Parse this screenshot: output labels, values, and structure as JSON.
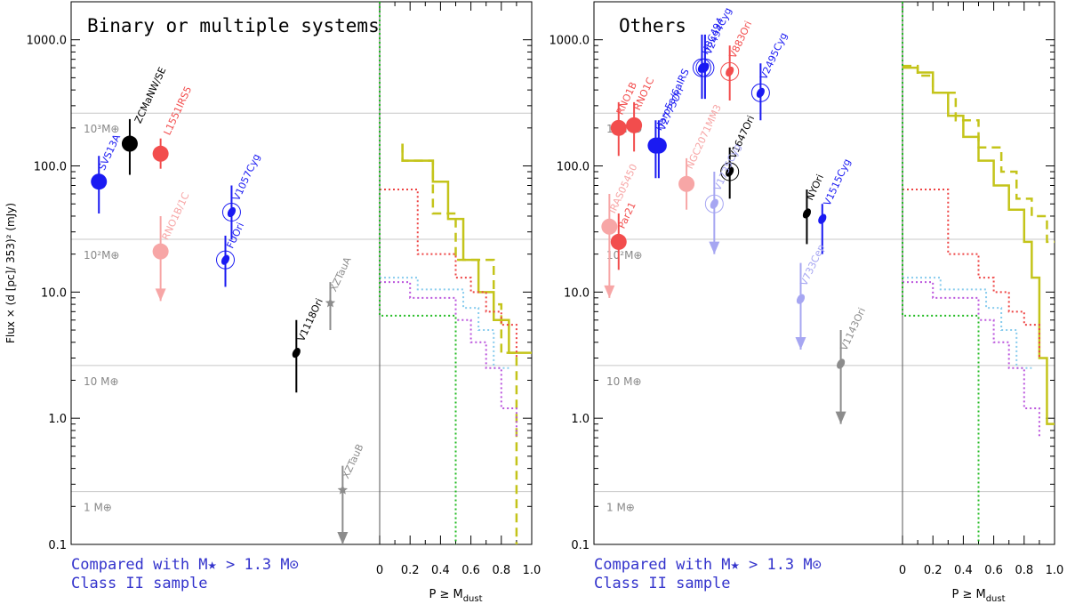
{
  "figure": {
    "ylabel": "Flux × (d [pc]/ 353)² (mJy)",
    "mass_labels": [
      "10³M⊕",
      "10²M⊕",
      "10 M⊕",
      "1 M⊕"
    ],
    "mass_lines": [
      262,
      26.2,
      2.62,
      0.262
    ],
    "prob_label": "P ≥ M",
    "prob_label_sub": "dust",
    "footer_line1": "Compared with M★ > 1.3 M⊙",
    "footer_line2": "Class II sample",
    "colors": {
      "red": "#f24d4d",
      "blue": "#1a1af2",
      "black": "#000000",
      "gray": "#8c8c8c",
      "pink": "#f7a6a6",
      "lightblue": "#a6a6f2",
      "olive": "#c4c41a",
      "green": "#22bb22",
      "violet": "#bb55dd",
      "cyan": "#88ccee",
      "redstep": "#ee4444"
    }
  },
  "chart_data": [
    {
      "type": "scatter",
      "title": "Binary or multiple systems",
      "ylabel": "Flux × (d [pc]/ 353)² (mJy)",
      "yscale": "log",
      "ylim": [
        0.1,
        2000
      ],
      "yticks": [
        "0.1",
        "1.0",
        "10.0",
        "100.0",
        "1000.0"
      ],
      "points": [
        {
          "name": "SVS13A",
          "x": 0.09,
          "y": 75,
          "lo": 42,
          "hi": 120,
          "color": "blue",
          "shape": "circle",
          "upper": false,
          "label_dx": 6,
          "label_dy": -12
        },
        {
          "name": "ZCMaNW/SE",
          "x": 0.19,
          "y": 150,
          "lo": 85,
          "hi": 235,
          "color": "black",
          "shape": "circle",
          "upper": false,
          "label_dx": 12,
          "label_dy": -22
        },
        {
          "name": "L1551IRS5",
          "x": 0.29,
          "y": 125,
          "lo": 95,
          "hi": 165,
          "color": "red",
          "shape": "circle",
          "upper": false,
          "label_dx": 10,
          "label_dy": -20
        },
        {
          "name": "RNO1B/1C",
          "x": 0.29,
          "y": 21,
          "lo": 8.5,
          "hi": 40,
          "color": "pink",
          "shape": "circle",
          "upper": true,
          "label_dx": 8,
          "label_dy": -12
        },
        {
          "name": "V1057Cyg",
          "x": 0.52,
          "y": 43,
          "lo": 26,
          "hi": 70,
          "color": "blue",
          "shape": "ring",
          "upper": false,
          "label_dx": 8,
          "label_dy": -12
        },
        {
          "name": "FUOri",
          "x": 0.5,
          "y": 18,
          "lo": 11,
          "hi": 28,
          "color": "blue",
          "shape": "ring",
          "upper": false,
          "label_dx": 8,
          "label_dy": -12
        },
        {
          "name": "V1118Ori",
          "x": 0.73,
          "y": 3.3,
          "lo": 1.6,
          "hi": 6,
          "color": "black",
          "shape": "ellipse",
          "upper": false,
          "label_dx": 8,
          "label_dy": -12
        },
        {
          "name": "XZTauA",
          "x": 0.84,
          "y": 8.2,
          "lo": 5,
          "hi": 12,
          "color": "gray",
          "shape": "star",
          "upper": false,
          "label_dx": 6,
          "label_dy": -12
        },
        {
          "name": "XZTauB",
          "x": 0.88,
          "y": 0.27,
          "lo": 0.1,
          "hi": 0.42,
          "color": "gray",
          "shape": "star",
          "upper": true,
          "label_dx": 6,
          "label_dy": -12
        }
      ],
      "prob_steps": [
        {
          "color": "olive",
          "dash": "solid",
          "x": [
            0.15,
            0.15,
            0.35,
            0.35,
            0.45,
            0.45,
            0.55,
            0.55,
            0.65,
            0.65,
            0.75,
            0.75,
            0.85,
            0.85,
            1.0
          ],
          "y": [
            150,
            110,
            110,
            75,
            75,
            38,
            38,
            18,
            18,
            10,
            10,
            6,
            6,
            3.3,
            3.3
          ]
        },
        {
          "color": "olive",
          "dash": "dash",
          "x": [
            0.15,
            0.15,
            0.35,
            0.35,
            0.5,
            0.5,
            0.75,
            0.75,
            0.8,
            0.8,
            0.9,
            0.9
          ],
          "y": [
            150,
            110,
            110,
            42,
            42,
            18,
            18,
            8,
            8,
            3.3,
            3.3,
            0.1
          ]
        },
        {
          "color": "redstep",
          "dash": "dot",
          "x": [
            0,
            0.25,
            0.25,
            0.5,
            0.5,
            0.6,
            0.6,
            0.7,
            0.7,
            0.8,
            0.8,
            0.9,
            0.9
          ],
          "y": [
            65,
            65,
            20,
            20,
            13,
            13,
            10,
            10,
            7,
            7,
            5.5,
            5.5,
            3
          ]
        },
        {
          "color": "cyan",
          "dash": "dot",
          "x": [
            0,
            0.25,
            0.25,
            0.55,
            0.55,
            0.65,
            0.65,
            0.75,
            0.75,
            0.85
          ],
          "y": [
            13,
            13,
            10.5,
            10.5,
            7.5,
            7.5,
            5,
            5,
            2.5,
            2.5
          ]
        },
        {
          "color": "violet",
          "dash": "dot",
          "x": [
            0,
            0.2,
            0.2,
            0.5,
            0.5,
            0.6,
            0.6,
            0.7,
            0.7,
            0.8,
            0.8,
            0.9,
            0.9
          ],
          "y": [
            12,
            12,
            9,
            9,
            6,
            6,
            4,
            4,
            2.5,
            2.5,
            1.2,
            1.2,
            0.7
          ]
        },
        {
          "color": "green",
          "dash": "dot",
          "x": [
            0,
            0,
            0.5,
            0.5
          ],
          "y": [
            2000,
            6.5,
            6.5,
            0.1
          ]
        }
      ]
    },
    {
      "type": "scatter",
      "title": "Others",
      "ylabel": "Flux × (d [pc]/ 353)² (mJy)",
      "yscale": "log",
      "ylim": [
        0.1,
        2000
      ],
      "yticks": [
        "0.1",
        "1.0",
        "10.0",
        "100.0",
        "1000.0"
      ],
      "points": [
        {
          "name": "RNO1B",
          "x": 0.08,
          "y": 200,
          "lo": 120,
          "hi": 320,
          "color": "red",
          "shape": "circle",
          "upper": false,
          "label_dx": 4,
          "label_dy": -14
        },
        {
          "name": "RNO1C",
          "x": 0.13,
          "y": 210,
          "lo": 130,
          "hi": 320,
          "color": "red",
          "shape": "circle",
          "upper": false,
          "label_dx": 6,
          "label_dy": -16
        },
        {
          "name": "HBC494",
          "x": 0.35,
          "y": 600,
          "lo": 340,
          "hi": 1100,
          "color": "blue",
          "shape": "ring",
          "upper": false,
          "label_dx": 6,
          "label_dy": -14
        },
        {
          "name": "Haro5a/6aIRS",
          "x": 0.2,
          "y": 145,
          "lo": 80,
          "hi": 230,
          "color": "blue",
          "shape": "circle",
          "upper": false,
          "label_dx": 6,
          "label_dy": -16
        },
        {
          "name": "V2494Cyg",
          "x": 0.36,
          "y": 600,
          "lo": 340,
          "hi": 1100,
          "color": "blue",
          "shape": "ring",
          "upper": false,
          "label_dx": 6,
          "label_dy": -14
        },
        {
          "name": "V883Ori",
          "x": 0.44,
          "y": 560,
          "lo": 330,
          "hi": 900,
          "color": "red",
          "shape": "ring",
          "upper": false,
          "label_dx": 6,
          "label_dy": -14
        },
        {
          "name": "V2495Cyg",
          "x": 0.54,
          "y": 380,
          "lo": 230,
          "hi": 650,
          "color": "blue",
          "shape": "ring",
          "upper": false,
          "label_dx": 6,
          "label_dy": -14
        },
        {
          "name": "V2775Ori",
          "x": 0.21,
          "y": 145,
          "lo": 80,
          "hi": 230,
          "color": "blue",
          "shape": "circle",
          "upper": false,
          "label_dx": 6,
          "label_dy": -16
        },
        {
          "name": "NGC2071MM3",
          "x": 0.3,
          "y": 72,
          "lo": 45,
          "hi": 115,
          "color": "pink",
          "shape": "circle",
          "upper": false,
          "label_dx": 6,
          "label_dy": -16
        },
        {
          "name": "V1647Ori",
          "x": 0.44,
          "y": 90,
          "lo": 55,
          "hi": 140,
          "color": "black",
          "shape": "ring",
          "upper": false,
          "label_dx": 6,
          "label_dy": -14
        },
        {
          "name": "V1735Cyg",
          "x": 0.39,
          "y": 50,
          "lo": 20,
          "hi": 90,
          "color": "lightblue",
          "shape": "ring",
          "upper": true,
          "label_dx": 6,
          "label_dy": -14
        },
        {
          "name": "IRAS05450",
          "x": 0.05,
          "y": 33,
          "lo": 9,
          "hi": 60,
          "color": "pink",
          "shape": "circle",
          "upper": true,
          "label_dx": 6,
          "label_dy": -14
        },
        {
          "name": "Par21",
          "x": 0.08,
          "y": 25,
          "lo": 15,
          "hi": 42,
          "color": "red",
          "shape": "circle",
          "upper": false,
          "label_dx": 6,
          "label_dy": -14
        },
        {
          "name": "NYOri",
          "x": 0.69,
          "y": 42,
          "lo": 24,
          "hi": 65,
          "color": "black",
          "shape": "ellipse",
          "upper": false,
          "label_dx": 6,
          "label_dy": -14
        },
        {
          "name": "V1515Cyg",
          "x": 0.74,
          "y": 38,
          "lo": 20,
          "hi": 50,
          "color": "blue",
          "shape": "ellipse",
          "upper": false,
          "label_dx": 8,
          "label_dy": -14
        },
        {
          "name": "V733Cep",
          "x": 0.67,
          "y": 8.8,
          "lo": 3.5,
          "hi": 17,
          "color": "lightblue",
          "shape": "ellipse",
          "upper": true,
          "label_dx": 6,
          "label_dy": -14
        },
        {
          "name": "V1143Ori",
          "x": 0.8,
          "y": 2.7,
          "lo": 0.9,
          "hi": 5,
          "color": "gray",
          "shape": "ellipse",
          "upper": true,
          "label_dx": 6,
          "label_dy": -14
        }
      ],
      "prob_steps": [
        {
          "color": "olive",
          "dash": "solid",
          "x": [
            0,
            0.1,
            0.1,
            0.2,
            0.2,
            0.3,
            0.3,
            0.4,
            0.4,
            0.5,
            0.5,
            0.6,
            0.6,
            0.7,
            0.7,
            0.8,
            0.8,
            0.85,
            0.85,
            0.9,
            0.9,
            0.95,
            0.95,
            1.0
          ],
          "y": [
            600,
            600,
            550,
            550,
            380,
            380,
            250,
            250,
            170,
            170,
            110,
            110,
            70,
            70,
            45,
            45,
            25,
            25,
            13,
            13,
            3,
            3,
            0.9,
            0.9
          ]
        },
        {
          "color": "olive",
          "dash": "dash",
          "x": [
            0,
            0.1,
            0.1,
            0.2,
            0.2,
            0.35,
            0.35,
            0.5,
            0.5,
            0.65,
            0.65,
            0.75,
            0.75,
            0.85,
            0.85,
            0.95,
            0.95,
            1.0
          ],
          "y": [
            620,
            620,
            520,
            520,
            380,
            380,
            230,
            230,
            140,
            140,
            90,
            90,
            55,
            55,
            40,
            40,
            25,
            25
          ]
        },
        {
          "color": "redstep",
          "dash": "dot",
          "x": [
            0,
            0.3,
            0.3,
            0.5,
            0.5,
            0.6,
            0.6,
            0.7,
            0.7,
            0.8,
            0.8,
            0.9,
            0.9
          ],
          "y": [
            65,
            65,
            20,
            20,
            13,
            13,
            10,
            10,
            7,
            7,
            5.5,
            5.5,
            3
          ]
        },
        {
          "color": "cyan",
          "dash": "dot",
          "x": [
            0,
            0.25,
            0.25,
            0.55,
            0.55,
            0.65,
            0.65,
            0.75,
            0.75,
            0.85
          ],
          "y": [
            13,
            13,
            10.5,
            10.5,
            7.5,
            7.5,
            5,
            5,
            2.5,
            2.5
          ]
        },
        {
          "color": "violet",
          "dash": "dot",
          "x": [
            0,
            0.2,
            0.2,
            0.5,
            0.5,
            0.6,
            0.6,
            0.7,
            0.7,
            0.8,
            0.8,
            0.9,
            0.9
          ],
          "y": [
            12,
            12,
            9,
            9,
            6,
            6,
            4,
            4,
            2.5,
            2.5,
            1.2,
            1.2,
            0.7
          ]
        },
        {
          "color": "green",
          "dash": "dot",
          "x": [
            0,
            0,
            0.5,
            0.5
          ],
          "y": [
            2000,
            6.5,
            6.5,
            0.1
          ]
        }
      ]
    }
  ]
}
